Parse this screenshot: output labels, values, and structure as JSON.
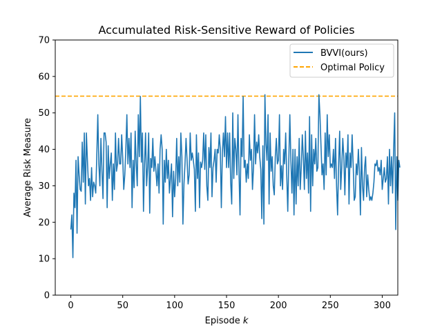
{
  "chart_data": {
    "type": "line",
    "title": "Accumulated Risk-Sensitive Reward of Policies",
    "xlabel_text": "Episode ",
    "xlabel_var": "k",
    "ylabel": "Average Risk Measure",
    "xlim": [
      -15,
      315
    ],
    "ylim": [
      0,
      70
    ],
    "xticks": [
      0,
      50,
      100,
      150,
      200,
      250,
      300
    ],
    "yticks": [
      0,
      10,
      20,
      30,
      40,
      50,
      60,
      70
    ],
    "grid": false,
    "legend_position": "top-right",
    "series": [
      {
        "name": "BVVI(ours)",
        "color": "#1f77b4",
        "style": "solid",
        "x_start": 0,
        "x_step": 1,
        "values": [
          18.0,
          22.0,
          10.3,
          28.0,
          24.0,
          37.0,
          17.0,
          38.0,
          33.0,
          29.0,
          28.5,
          42.0,
          31.0,
          44.5,
          25.0,
          44.5,
          37.0,
          30.0,
          32.0,
          26.0,
          35.0,
          27.0,
          31.0,
          30.0,
          28.0,
          38.0,
          49.5,
          36.0,
          30.0,
          43.0,
          34.0,
          26.5,
          44.5,
          44.5,
          42.0,
          24.0,
          41.0,
          32.0,
          36.0,
          39.0,
          26.0,
          36.0,
          29.0,
          44.5,
          34.0,
          36.0,
          43.0,
          36.0,
          36.0,
          44.0,
          37.5,
          29.0,
          33.0,
          40.0,
          49.5,
          36.0,
          43.0,
          35.0,
          44.5,
          24.0,
          37.0,
          29.5,
          45.0,
          36.0,
          30.0,
          49.5,
          38.0,
          54.5,
          36.5,
          44.5,
          23.0,
          36.0,
          44.5,
          30.0,
          35.0,
          44.5,
          22.5,
          37.5,
          35.0,
          43.0,
          34.0,
          38.0,
          34.0,
          30.0,
          36.0,
          28.0,
          40.0,
          44.0,
          40.0,
          19.5,
          37.0,
          31.0,
          40.0,
          32.0,
          37.0,
          28.0,
          32.0,
          36.0,
          21.5,
          34.0,
          27.0,
          32.0,
          43.0,
          30.0,
          38.0,
          31.0,
          44.5,
          38.0,
          19.5,
          30.5,
          36.0,
          43.0,
          37.0,
          30.5,
          33.0,
          44.5,
          37.0,
          39.0,
          37.0,
          34.5,
          23.0,
          44.0,
          32.0,
          39.0,
          24.0,
          36.5,
          35.0,
          37.0,
          44.5,
          34.5,
          44.0,
          30.0,
          26.0,
          40.5,
          35.0,
          44.5,
          27.0,
          35.0,
          37.0,
          40.0,
          31.0,
          40.0,
          39.0,
          44.0,
          40.0,
          24.0,
          39.0,
          44.5,
          38.0,
          49.0,
          35.0,
          44.5,
          35.0,
          44.5,
          31.0,
          25.0,
          50.0,
          32.0,
          43.0,
          40.0,
          33.0,
          49.5,
          34.0,
          22.0,
          43.0,
          38.0,
          54.5,
          35.0,
          37.0,
          31.0,
          36.0,
          32.0,
          44.0,
          37.0,
          40.0,
          29.0,
          35.0,
          49.5,
          36.0,
          42.0,
          39.0,
          44.0,
          38.0,
          34.5,
          21.0,
          41.0,
          19.5,
          55.0,
          41.5,
          37.0,
          49.5,
          25.0,
          44.5,
          34.0,
          38.0,
          30.0,
          27.5,
          38.0,
          43.0,
          36.0,
          37.0,
          49.5,
          30.0,
          35.5,
          29.0,
          40.0,
          36.0,
          44.5,
          33.0,
          23.0,
          37.0,
          49.5,
          37.0,
          28.0,
          40.0,
          22.0,
          40.0,
          25.0,
          38.0,
          30.0,
          43.0,
          29.0,
          35.0,
          44.0,
          38.0,
          29.0,
          45.0,
          32.0,
          39.0,
          28.0,
          49.0,
          23.0,
          44.0,
          30.0,
          40.0,
          36.0,
          43.0,
          34.0,
          35.0,
          55.0,
          49.5,
          41.0,
          33.0,
          36.0,
          29.0,
          44.5,
          33.0,
          49.5,
          38.0,
          44.0,
          35.0,
          36.0,
          35.0,
          40.0,
          32.0,
          43.0,
          30.0,
          22.0,
          36.0,
          45.0,
          29.0,
          35.0,
          43.0,
          38.0,
          27.5,
          39.0,
          35.0,
          44.0,
          25.0,
          39.0,
          35.0,
          44.0,
          36.0,
          26.0,
          27.0,
          36.0,
          33.0,
          40.0,
          34.0,
          22.0,
          40.5,
          30.0,
          26.0,
          35.0,
          38.0,
          27.0,
          33.0,
          29.0,
          26.0,
          27.0,
          26.0,
          28.0,
          31.0,
          36.0,
          35.5,
          37.0,
          34.0,
          35.0,
          33.0,
          37.0,
          29.0,
          32.0,
          35.0,
          31.0,
          32.0,
          38.0,
          25.0,
          40.0,
          30.0,
          38.0,
          28.0,
          40.0,
          50.0,
          18.0,
          38.0,
          26.0,
          37.0,
          35.0
        ]
      },
      {
        "name": "Optimal Policy",
        "color": "#ffa500",
        "style": "dashed",
        "constant": 54.6
      }
    ]
  }
}
